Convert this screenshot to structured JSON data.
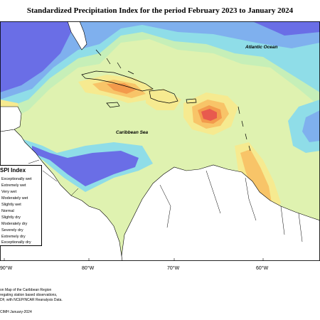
{
  "title": "Standardized Precipitation Index for the period February 2023 to January 2024",
  "labels": {
    "atlantic": "Atlantic Ocean",
    "caribbean": "Caribbean Sea"
  },
  "legend": {
    "title": "SPI Index",
    "items": [
      "Exceptionally wet",
      "Extremely wet",
      "Very wet",
      "Moderately wet",
      "Slightly wet",
      "Normal",
      "Slightly dry",
      "Moderately dry",
      "Severely dry",
      "Extremely dry",
      "Exceptionally dry"
    ]
  },
  "longitude_ticks": [
    "90°W",
    "80°W",
    "70°W",
    "60°W"
  ],
  "footer": {
    "line1": "on Map of the Caribbean Region",
    "line2": "regating station based observations,",
    "line3": "DF, with NCEP/NCAR Reanalysis Data.",
    "line4": "CIMH January-2024"
  },
  "colors": {
    "exceptionally_wet": "#6a6ee6",
    "very_wet": "#7fb0ee",
    "moderately_wet": "#8fdde8",
    "slightly_wet": "#c6efb8",
    "normal": "#dff2b0",
    "slightly_dry": "#f6ea90",
    "moderately_dry": "#f8c468",
    "severely_dry": "#f39a4c",
    "extremely_dry": "#f08060",
    "exceptionally_dry": "#e85a4e",
    "land": "#ffffff"
  }
}
